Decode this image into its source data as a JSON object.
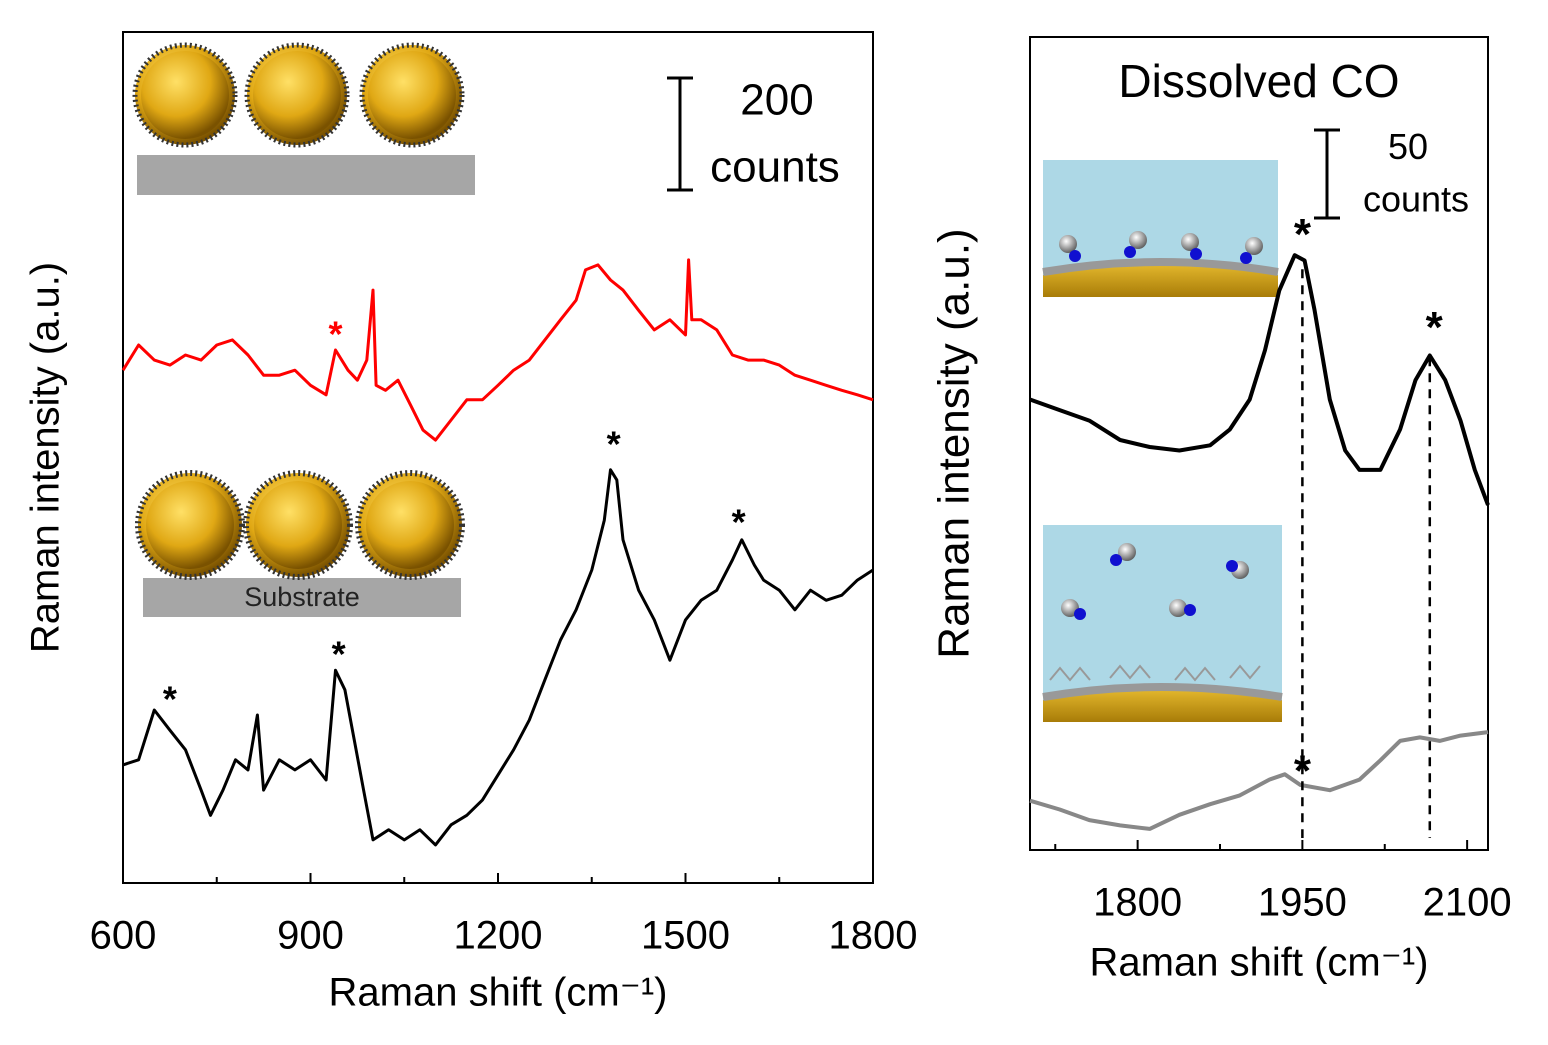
{
  "chart_data": [
    {
      "type": "line",
      "xlabel": "Raman shift (cm⁻¹)",
      "ylabel": "Raman intensity (a.u.)",
      "xlim": [
        600,
        1800
      ],
      "xticks": [
        600,
        900,
        1200,
        1500,
        1800
      ],
      "xminorticks": [
        750,
        1050,
        1350,
        1650
      ],
      "ylim": [
        0,
        1520
      ],
      "scale_bar": {
        "value": 200,
        "unit": "counts"
      },
      "inset_label": "Substrate",
      "series": [
        {
          "color": "#ff0000",
          "x": [
            600,
            625,
            650,
            675,
            700,
            725,
            750,
            775,
            800,
            825,
            850,
            875,
            900,
            925,
            940,
            960,
            975,
            990,
            1000,
            1005,
            1020,
            1040,
            1060,
            1080,
            1100,
            1125,
            1150,
            1175,
            1200,
            1225,
            1250,
            1275,
            1300,
            1325,
            1340,
            1360,
            1380,
            1400,
            1425,
            1450,
            1475,
            1500,
            1505,
            1510,
            1525,
            1550,
            1575,
            1600,
            1625,
            1650,
            1675,
            1700,
            1725,
            1750,
            1775,
            1800
          ],
          "values": [
            916,
            961,
            934,
            925,
            943,
            934,
            961,
            970,
            943,
            907,
            907,
            916,
            889,
            872,
            952,
            916,
            898,
            934,
            1059,
            889,
            880,
            898,
            854,
            809,
            791,
            827,
            863,
            863,
            889,
            916,
            934,
            970,
            1006,
            1041,
            1095,
            1104,
            1077,
            1059,
            1023,
            988,
            1006,
            979,
            1113,
            1006,
            1006,
            988,
            943,
            934,
            934,
            925,
            907,
            898,
            889,
            880,
            872,
            863
          ]
        },
        {
          "color": "#000000",
          "x": [
            600,
            625,
            650,
            675,
            700,
            725,
            740,
            760,
            780,
            800,
            815,
            825,
            850,
            875,
            900,
            925,
            940,
            955,
            970,
            985,
            1000,
            1025,
            1050,
            1075,
            1100,
            1125,
            1150,
            1175,
            1200,
            1225,
            1250,
            1275,
            1300,
            1325,
            1350,
            1370,
            1380,
            1390,
            1400,
            1425,
            1450,
            1475,
            1500,
            1525,
            1550,
            1575,
            1590,
            1610,
            1625,
            1650,
            1675,
            1700,
            1725,
            1750,
            1775,
            1800
          ],
          "values": [
            211,
            220,
            309,
            273,
            238,
            166,
            121,
            166,
            220,
            202,
            300,
            166,
            220,
            202,
            220,
            184,
            380,
            345,
            255,
            166,
            77,
            95,
            77,
            95,
            68,
            104,
            121,
            148,
            193,
            238,
            291,
            363,
            434,
            488,
            559,
            648,
            738,
            720,
            613,
            523,
            470,
            398,
            470,
            505,
            523,
            577,
            613,
            568,
            541,
            523,
            488,
            523,
            505,
            514,
            541,
            559
          ]
        }
      ],
      "annotations": [
        {
          "text": "*",
          "x": 940,
          "y": 997,
          "color": "#ff0000"
        },
        {
          "text": "*",
          "x": 675,
          "y": 345,
          "color": "#000000"
        },
        {
          "text": "*",
          "x": 945,
          "y": 425,
          "color": "#000000"
        },
        {
          "text": "*",
          "x": 1385,
          "y": 800,
          "color": "#000000"
        },
        {
          "text": "*",
          "x": 1585,
          "y": 661,
          "color": "#000000"
        }
      ]
    },
    {
      "type": "line",
      "title": "Dissolved CO",
      "xlabel": "Raman shift (cm⁻¹)",
      "ylabel": "Raman intensity (a.u.)",
      "xlim": [
        1702,
        2119
      ],
      "xticks": [
        1800,
        1950,
        2100
      ],
      "xminorticks": [
        1725,
        1875,
        2025
      ],
      "ylim": [
        0,
        462
      ],
      "scale_bar": {
        "value": 50,
        "unit": "counts"
      },
      "series": [
        {
          "color": "#000000",
          "x": [
            1702,
            1729,
            1756,
            1784,
            1811,
            1838,
            1866,
            1884,
            1902,
            1916,
            1929,
            1943,
            1952,
            1961,
            1975,
            1989,
            2002,
            2021,
            2039,
            2053,
            2066,
            2080,
            2094,
            2107,
            2119
          ],
          "values": [
            256,
            250,
            244,
            233,
            229,
            227,
            230,
            239,
            256,
            284,
            318,
            338,
            335,
            307,
            256,
            227,
            216,
            216,
            239,
            267,
            281,
            267,
            244,
            216,
            196
          ]
        },
        {
          "color": "#888888",
          "x": [
            1702,
            1729,
            1756,
            1784,
            1811,
            1838,
            1866,
            1893,
            1920,
            1934,
            1948,
            1975,
            2002,
            2021,
            2039,
            2057,
            2075,
            2094,
            2119
          ],
          "values": [
            28,
            23,
            17,
            14,
            12,
            20,
            26,
            31,
            40,
            43,
            37,
            34,
            40,
            51,
            62,
            64,
            62,
            65,
            67
          ]
        }
      ],
      "dashed_lines": [
        {
          "x": 1950,
          "y": 330
        },
        {
          "x": 2066,
          "y": 280
        }
      ],
      "annotations": [
        {
          "text": "*",
          "x": 1950,
          "y": 355,
          "color": "#000000"
        },
        {
          "text": "*",
          "x": 2070,
          "y": 302,
          "color": "#000000"
        },
        {
          "text": "*",
          "x": 1950,
          "y": 50,
          "color": "#000000"
        }
      ]
    }
  ]
}
